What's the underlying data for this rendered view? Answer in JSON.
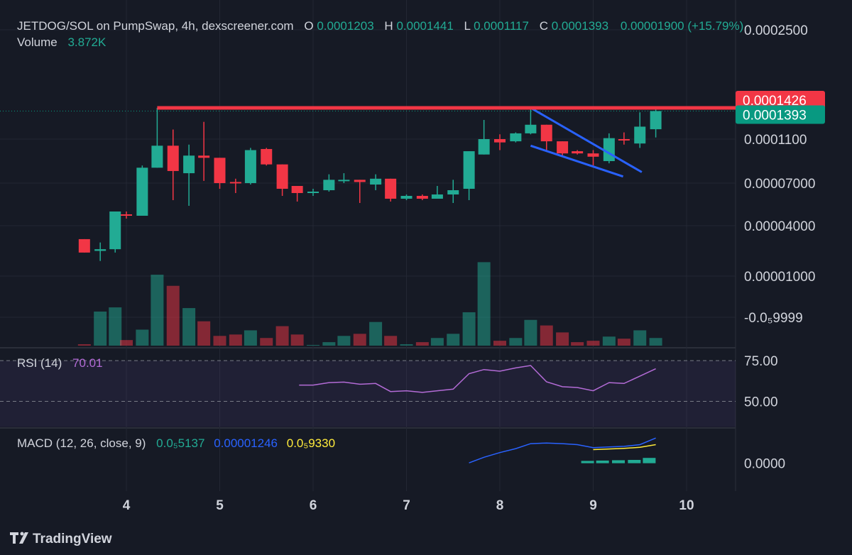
{
  "header": {
    "symbol": "JETDOG/SOL on PumpSwap, 4h, dexscreener.com",
    "open_key": "O",
    "open_val": "0.0001203",
    "high_key": "H",
    "high_val": "0.0001441",
    "low_key": "L",
    "low_val": "0.0001117",
    "close_key": "C",
    "close_val": "0.0001393",
    "change": "0.00001900 (+15.79%)",
    "volume_key": "Volume",
    "volume_val": "3.872K"
  },
  "price_axis": {
    "ticks": [
      {
        "value": 0.00025,
        "label": "0.0002500"
      },
      {
        "value": 0.00011,
        "label": "0.0001100"
      },
      {
        "value": 7e-05,
        "label": "0.00007000"
      },
      {
        "value": 4e-05,
        "label": "0.00004000"
      },
      {
        "value": 1e-05,
        "label": "0.00001000"
      },
      {
        "value": -9.9999e-06,
        "label": "-0.0₅9999"
      }
    ],
    "resistance": {
      "value": 0.0001426,
      "label": "0.0001426",
      "color": "#f23645"
    },
    "last_price": {
      "value": 0.0001393,
      "label": "0.0001393",
      "color": "#089981"
    }
  },
  "x_axis": {
    "ticks": [
      {
        "day": 4,
        "label": "4"
      },
      {
        "day": 5,
        "label": "5"
      },
      {
        "day": 6,
        "label": "6"
      },
      {
        "day": 7,
        "label": "7"
      },
      {
        "day": 8,
        "label": "8"
      },
      {
        "day": 9,
        "label": "9"
      },
      {
        "day": 10,
        "label": "10"
      }
    ]
  },
  "rsi": {
    "title": "RSI (14)",
    "value": "70.01",
    "levels": [
      {
        "value": 75,
        "label": "75.00"
      },
      {
        "value": 50,
        "label": "50.00"
      }
    ],
    "color": "#b36bd6"
  },
  "macd": {
    "title": "MACD (12, 26, close, 9)",
    "hist_val": "0.0₅5137",
    "macd_val": "0.00001246",
    "signal_val": "0.0₅9330",
    "zero_label": "0.0000",
    "colors": {
      "hist": "#22ab94",
      "macd": "#2962ff",
      "signal": "#ffeb3b"
    }
  },
  "colors": {
    "up": "#22ab94",
    "down": "#f23645",
    "background": "#161a25",
    "text": "#d1d4dc",
    "trend": "#2962ff"
  },
  "footer": {
    "brand": "TradingView"
  },
  "chart_data": {
    "type": "candlestick",
    "timeframe": "4h",
    "candles": [
      {
        "t": 3.55,
        "o": 3.2e-05,
        "h": 3.2e-05,
        "l": 2.4e-05,
        "c": 2.4e-05
      },
      {
        "t": 3.72,
        "o": 2.5e-05,
        "h": 3e-05,
        "l": 1.9e-05,
        "c": 2.6e-05
      },
      {
        "t": 3.88,
        "o": 2.6e-05,
        "h": 5e-05,
        "l": 2.4e-05,
        "c": 5e-05
      },
      {
        "t": 4.0,
        "o": 4.8e-05,
        "h": 5e-05,
        "l": 4.5e-05,
        "c": 4.7e-05
      },
      {
        "t": 4.17,
        "o": 4.7e-05,
        "h": 8.6e-05,
        "l": 4.7e-05,
        "c": 8.4e-05
      },
      {
        "t": 4.33,
        "o": 8.4e-05,
        "h": 0.0001426,
        "l": 8.4e-05,
        "c": 0.000104
      },
      {
        "t": 4.5,
        "o": 0.000104,
        "h": 0.00012,
        "l": 5.8e-05,
        "c": 8.1e-05
      },
      {
        "t": 4.67,
        "o": 7.9e-05,
        "h": 0.000105,
        "l": 5.4e-05,
        "c": 9.5e-05
      },
      {
        "t": 4.83,
        "o": 9.5e-05,
        "h": 0.000128,
        "l": 7.2e-05,
        "c": 9.3e-05
      },
      {
        "t": 5.0,
        "o": 9.3e-05,
        "h": 9.3e-05,
        "l": 6.6e-05,
        "c": 7e-05
      },
      {
        "t": 5.17,
        "o": 7.1e-05,
        "h": 7.4e-05,
        "l": 6.3e-05,
        "c": 7e-05
      },
      {
        "t": 5.33,
        "o": 7e-05,
        "h": 0.000102,
        "l": 6.9e-05,
        "c": 0.0001
      },
      {
        "t": 5.5,
        "o": 0.000101,
        "h": 0.000102,
        "l": 8.6e-05,
        "c": 8.7e-05
      },
      {
        "t": 5.67,
        "o": 8.7e-05,
        "h": 8.7e-05,
        "l": 6.1e-05,
        "c": 6.6e-05
      },
      {
        "t": 5.83,
        "o": 6.8e-05,
        "h": 6.8e-05,
        "l": 5.7e-05,
        "c": 6.3e-05
      },
      {
        "t": 6.0,
        "o": 6.4e-05,
        "h": 6.6e-05,
        "l": 6.1e-05,
        "c": 6.4e-05
      },
      {
        "t": 6.17,
        "o": 6.5e-05,
        "h": 7.8e-05,
        "l": 6.4e-05,
        "c": 7.3e-05
      },
      {
        "t": 6.33,
        "o": 7.3e-05,
        "h": 7.9e-05,
        "l": 7e-05,
        "c": 7.3e-05
      },
      {
        "t": 6.5,
        "o": 7.3e-05,
        "h": 7.3e-05,
        "l": 5.6e-05,
        "c": 7.1e-05
      },
      {
        "t": 6.67,
        "o": 6.9e-05,
        "h": 7.8e-05,
        "l": 6.5e-05,
        "c": 7.4e-05
      },
      {
        "t": 6.83,
        "o": 7.4e-05,
        "h": 7.4e-05,
        "l": 5.7e-05,
        "c": 5.9e-05
      },
      {
        "t": 7.0,
        "o": 5.9e-05,
        "h": 6.2e-05,
        "l": 5.8e-05,
        "c": 6.1e-05
      },
      {
        "t": 7.17,
        "o": 6.1e-05,
        "h": 6.2e-05,
        "l": 5.8e-05,
        "c": 5.9e-05
      },
      {
        "t": 7.33,
        "o": 5.9e-05,
        "h": 6.8e-05,
        "l": 5.9e-05,
        "c": 6.2e-05
      },
      {
        "t": 7.5,
        "o": 6.2e-05,
        "h": 7.3e-05,
        "l": 5.6e-05,
        "c": 6.5e-05
      },
      {
        "t": 7.67,
        "o": 6.6e-05,
        "h": 9.9e-05,
        "l": 5.8e-05,
        "c": 9.9e-05
      },
      {
        "t": 7.83,
        "o": 9.6e-05,
        "h": 0.00013,
        "l": 9.6e-05,
        "c": 0.00011
      },
      {
        "t": 8.0,
        "o": 0.00011,
        "h": 0.000115,
        "l": 0.0001,
        "c": 0.000107
      },
      {
        "t": 8.17,
        "o": 0.000108,
        "h": 0.000117,
        "l": 0.000107,
        "c": 0.000116
      },
      {
        "t": 8.33,
        "o": 0.000116,
        "h": 0.0001426,
        "l": 0.000115,
        "c": 0.000125
      },
      {
        "t": 8.5,
        "o": 0.000125,
        "h": 0.000125,
        "l": 9.9e-05,
        "c": 0.000108
      },
      {
        "t": 8.67,
        "o": 0.000108,
        "h": 0.000108,
        "l": 9.4e-05,
        "c": 9.7e-05
      },
      {
        "t": 8.83,
        "o": 9.9e-05,
        "h": 0.0001,
        "l": 9.6e-05,
        "c": 9.7e-05
      },
      {
        "t": 9.0,
        "o": 9.7e-05,
        "h": 0.0001,
        "l": 8.6e-05,
        "c": 9.4e-05
      },
      {
        "t": 9.17,
        "o": 9e-05,
        "h": 0.000116,
        "l": 8.8e-05,
        "c": 0.000111
      },
      {
        "t": 9.33,
        "o": 0.00011,
        "h": 0.000117,
        "l": 0.000105,
        "c": 0.000109
      },
      {
        "t": 9.5,
        "o": 0.000106,
        "h": 0.000138,
        "l": 0.000102,
        "c": 0.000123
      },
      {
        "t": 9.67,
        "o": 0.0001203,
        "h": 0.0001441,
        "l": 0.0001117,
        "c": 0.0001393
      }
    ],
    "volume_max": 10,
    "volume": [
      0.2,
      4.9,
      5.5,
      0.8,
      2.3,
      10.2,
      8.6,
      5.4,
      3.5,
      1.4,
      1.6,
      2.2,
      1.1,
      2.8,
      1.6,
      0.1,
      0.5,
      1.4,
      1.7,
      3.4,
      1.4,
      0.2,
      0.5,
      1.1,
      1.7,
      4.8,
      12.0,
      0.7,
      1.1,
      3.7,
      2.9,
      1.9,
      0.5,
      0.7,
      1.3,
      1.0,
      2.2,
      1.1
    ],
    "rsi_values": [
      {
        "t": 5.85,
        "v": 60
      },
      {
        "t": 6.0,
        "v": 60
      },
      {
        "t": 6.17,
        "v": 61.5
      },
      {
        "t": 6.33,
        "v": 61.8
      },
      {
        "t": 6.5,
        "v": 60.5
      },
      {
        "t": 6.67,
        "v": 61
      },
      {
        "t": 6.83,
        "v": 56
      },
      {
        "t": 7.0,
        "v": 56.5
      },
      {
        "t": 7.17,
        "v": 55.5
      },
      {
        "t": 7.33,
        "v": 56.5
      },
      {
        "t": 7.5,
        "v": 57.5
      },
      {
        "t": 7.67,
        "v": 67
      },
      {
        "t": 7.83,
        "v": 69.5
      },
      {
        "t": 8.0,
        "v": 68.5
      },
      {
        "t": 8.17,
        "v": 70.5
      },
      {
        "t": 8.33,
        "v": 72
      },
      {
        "t": 8.5,
        "v": 62
      },
      {
        "t": 8.67,
        "v": 59
      },
      {
        "t": 8.83,
        "v": 58.5
      },
      {
        "t": 9.0,
        "v": 56.5
      },
      {
        "t": 9.17,
        "v": 61.5
      },
      {
        "t": 9.33,
        "v": 61
      },
      {
        "t": 9.5,
        "v": 65.5
      },
      {
        "t": 9.67,
        "v": 70.01
      }
    ],
    "rsi_range": [
      35,
      82
    ],
    "macd_values": [
      {
        "t": 7.67,
        "v": 0.1
      },
      {
        "t": 7.83,
        "v": 1.8
      },
      {
        "t": 8.0,
        "v": 3.2
      },
      {
        "t": 8.17,
        "v": 4.4
      },
      {
        "t": 8.33,
        "v": 5.9
      },
      {
        "t": 8.5,
        "v": 6.1
      },
      {
        "t": 8.67,
        "v": 5.9
      },
      {
        "t": 8.83,
        "v": 5.6
      },
      {
        "t": 9.0,
        "v": 4.7
      },
      {
        "t": 9.17,
        "v": 4.9
      },
      {
        "t": 9.33,
        "v": 5.1
      },
      {
        "t": 9.5,
        "v": 5.6
      },
      {
        "t": 9.67,
        "v": 7.6
      }
    ],
    "signal_values": [
      {
        "t": 9.0,
        "v": 4.1
      },
      {
        "t": 9.17,
        "v": 4.3
      },
      {
        "t": 9.33,
        "v": 4.5
      },
      {
        "t": 9.5,
        "v": 4.8
      },
      {
        "t": 9.67,
        "v": 5.6
      }
    ],
    "macd_hist": [
      {
        "t": 8.94,
        "v": 0.7
      },
      {
        "t": 9.1,
        "v": 0.8
      },
      {
        "t": 9.27,
        "v": 0.9
      },
      {
        "t": 9.44,
        "v": 1.0
      },
      {
        "t": 9.6,
        "v": 1.6
      }
    ],
    "macd_range": [
      -8,
      10
    ],
    "trendlines": [
      {
        "from": {
          "t": 8.33,
          "p": 0.0001426
        },
        "to": {
          "t": 9.52,
          "p": 8e-05
        }
      },
      {
        "from": {
          "t": 8.33,
          "p": 0.000104
        },
        "to": {
          "t": 9.32,
          "p": 7.6e-05
        }
      }
    ]
  }
}
